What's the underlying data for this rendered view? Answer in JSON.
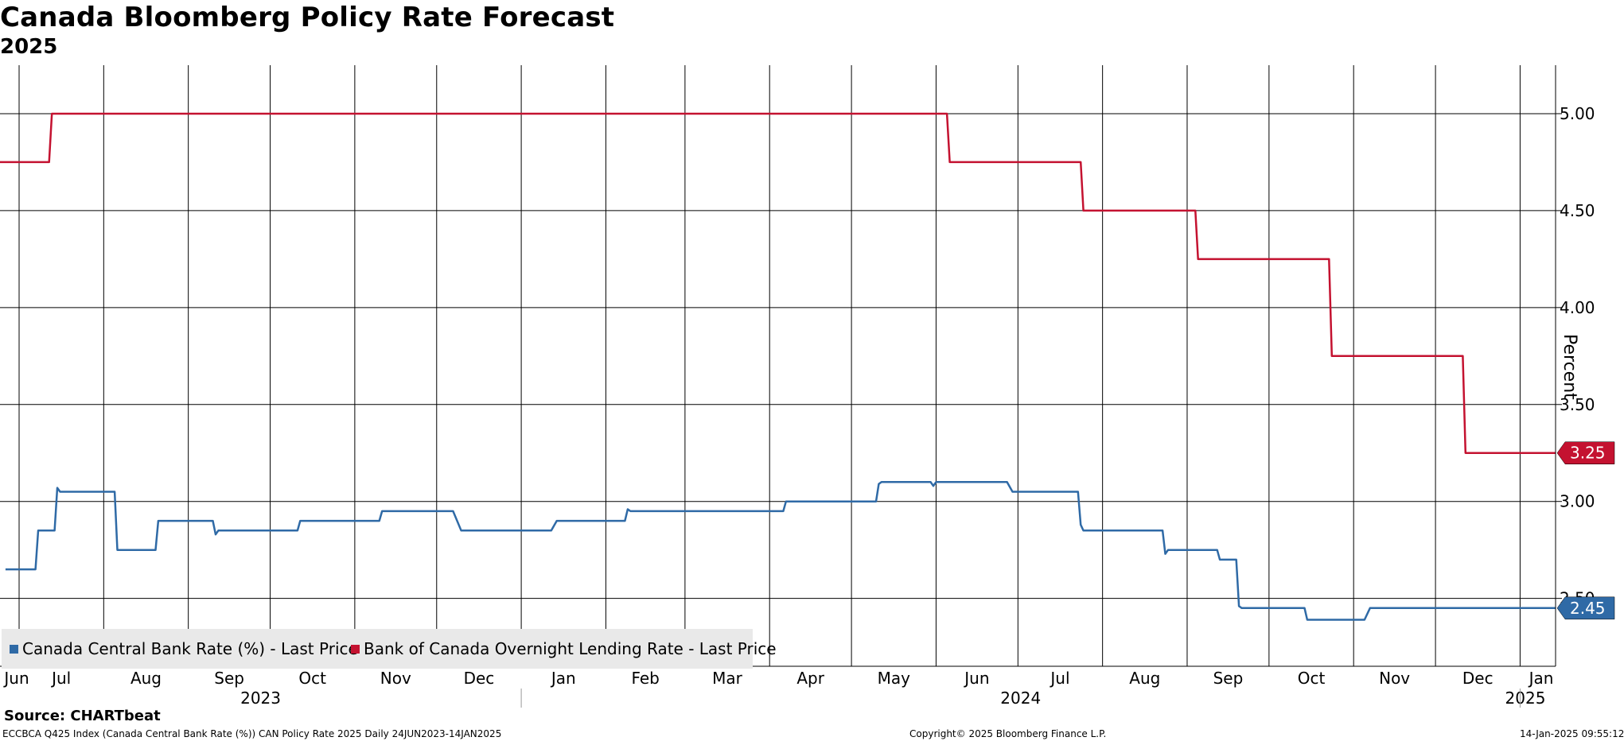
{
  "header": {
    "title": "Canada Bloomberg Policy Rate Forecast",
    "subtitle": "2025"
  },
  "footer": {
    "source": "Source: CHARTbeat",
    "left": "ECCBCA Q425 Index (Canada Central Bank Rate (%)) CAN Policy Rate 2025  Daily 24JUN2023-14JAN2025",
    "center": "Copyright© 2025 Bloomberg Finance L.P.",
    "right": "14-Jan-2025 09:55:12"
  },
  "colors": {
    "blue": "#2f6aa6",
    "red": "#c41230",
    "grid": "#000000"
  },
  "chart_data": {
    "type": "line",
    "title": "Canada Bloomberg Policy Rate Forecast",
    "subtitle": "2025",
    "ylabel": "Percent",
    "ylim": [
      2.15,
      5.25
    ],
    "y_ticks": [
      2.5,
      3.0,
      3.5,
      4.0,
      4.5,
      5.0
    ],
    "y_tick_labels": [
      "2.50",
      "3.00",
      "3.50",
      "4.00",
      "4.50",
      "5.00"
    ],
    "x_range": [
      "2023-06-24",
      "2025-01-14"
    ],
    "x_month_ticks": [
      {
        "date": "2023-06-24",
        "label": "Jun"
      },
      {
        "date": "2023-07-01",
        "label": "Jul"
      },
      {
        "date": "2023-08-01",
        "label": "Aug"
      },
      {
        "date": "2023-09-01",
        "label": "Sep"
      },
      {
        "date": "2023-10-01",
        "label": "Oct"
      },
      {
        "date": "2023-11-01",
        "label": "Nov"
      },
      {
        "date": "2023-12-01",
        "label": "Dec"
      },
      {
        "date": "2024-01-01",
        "label": "Jan"
      },
      {
        "date": "2024-02-01",
        "label": "Feb"
      },
      {
        "date": "2024-03-01",
        "label": "Mar"
      },
      {
        "date": "2024-04-01",
        "label": "Apr"
      },
      {
        "date": "2024-05-01",
        "label": "May"
      },
      {
        "date": "2024-06-01",
        "label": "Jun"
      },
      {
        "date": "2024-07-01",
        "label": "Jul"
      },
      {
        "date": "2024-08-01",
        "label": "Aug"
      },
      {
        "date": "2024-09-01",
        "label": "Sep"
      },
      {
        "date": "2024-10-01",
        "label": "Oct"
      },
      {
        "date": "2024-11-01",
        "label": "Nov"
      },
      {
        "date": "2024-12-01",
        "label": "Dec"
      },
      {
        "date": "2025-01-01",
        "label": "Jan"
      }
    ],
    "x_year_labels": [
      {
        "label": "2023",
        "from": "2023-06-24",
        "to": "2024-01-01"
      },
      {
        "label": "2024",
        "from": "2024-01-01",
        "to": "2025-01-01"
      },
      {
        "label": "2025",
        "from": "2025-01-01",
        "to": "2025-01-14"
      }
    ],
    "grid": true,
    "legend_position": "bottom-left",
    "series": [
      {
        "name": "Canada Central Bank Rate (%) - Last Price",
        "color": "#2f6aa6",
        "last_value_label": "2.45",
        "last_value": 2.45,
        "points": [
          [
            "2023-06-26",
            2.65
          ],
          [
            "2023-07-07",
            2.65
          ],
          [
            "2023-07-08",
            2.85
          ],
          [
            "2023-07-14",
            2.85
          ],
          [
            "2023-07-15",
            3.07
          ],
          [
            "2023-07-16",
            3.05
          ],
          [
            "2023-08-05",
            3.05
          ],
          [
            "2023-08-06",
            2.75
          ],
          [
            "2023-08-20",
            2.75
          ],
          [
            "2023-08-21",
            2.9
          ],
          [
            "2023-09-10",
            2.9
          ],
          [
            "2023-09-11",
            2.83
          ],
          [
            "2023-09-12",
            2.85
          ],
          [
            "2023-10-11",
            2.85
          ],
          [
            "2023-10-12",
            2.9
          ],
          [
            "2023-11-10",
            2.9
          ],
          [
            "2023-11-11",
            2.95
          ],
          [
            "2023-12-07",
            2.95
          ],
          [
            "2023-12-10",
            2.85
          ],
          [
            "2024-01-12",
            2.85
          ],
          [
            "2024-01-14",
            2.9
          ],
          [
            "2024-02-08",
            2.9
          ],
          [
            "2024-02-09",
            2.96
          ],
          [
            "2024-02-10",
            2.95
          ],
          [
            "2024-04-06",
            2.95
          ],
          [
            "2024-04-07",
            3.0
          ],
          [
            "2024-05-10",
            3.0
          ],
          [
            "2024-05-11",
            3.09
          ],
          [
            "2024-05-12",
            3.1
          ],
          [
            "2024-05-30",
            3.1
          ],
          [
            "2024-05-31",
            3.08
          ],
          [
            "2024-06-01",
            3.1
          ],
          [
            "2024-06-27",
            3.1
          ],
          [
            "2024-06-29",
            3.05
          ],
          [
            "2024-07-23",
            3.05
          ],
          [
            "2024-07-24",
            2.88
          ],
          [
            "2024-07-25",
            2.85
          ],
          [
            "2024-08-23",
            2.85
          ],
          [
            "2024-08-24",
            2.73
          ],
          [
            "2024-08-25",
            2.75
          ],
          [
            "2024-09-12",
            2.75
          ],
          [
            "2024-09-13",
            2.7
          ],
          [
            "2024-09-19",
            2.7
          ],
          [
            "2024-09-20",
            2.46
          ],
          [
            "2024-09-21",
            2.45
          ],
          [
            "2024-10-14",
            2.45
          ],
          [
            "2024-10-15",
            2.39
          ],
          [
            "2024-11-05",
            2.39
          ],
          [
            "2024-11-07",
            2.45
          ],
          [
            "2025-01-14",
            2.45
          ]
        ]
      },
      {
        "name": "Bank of Canada Overnight Lending Rate - Last Price",
        "color": "#c41230",
        "last_value_label": "3.25",
        "last_value": 3.25,
        "points": [
          [
            "2023-06-24",
            4.75
          ],
          [
            "2023-07-12",
            4.75
          ],
          [
            "2023-07-13",
            5.0
          ],
          [
            "2024-06-05",
            5.0
          ],
          [
            "2024-06-06",
            4.75
          ],
          [
            "2024-07-24",
            4.75
          ],
          [
            "2024-07-25",
            4.5
          ],
          [
            "2024-09-04",
            4.5
          ],
          [
            "2024-09-05",
            4.25
          ],
          [
            "2024-10-23",
            4.25
          ],
          [
            "2024-10-24",
            3.75
          ],
          [
            "2024-12-11",
            3.75
          ],
          [
            "2024-12-12",
            3.25
          ],
          [
            "2025-01-14",
            3.25
          ]
        ]
      }
    ]
  }
}
